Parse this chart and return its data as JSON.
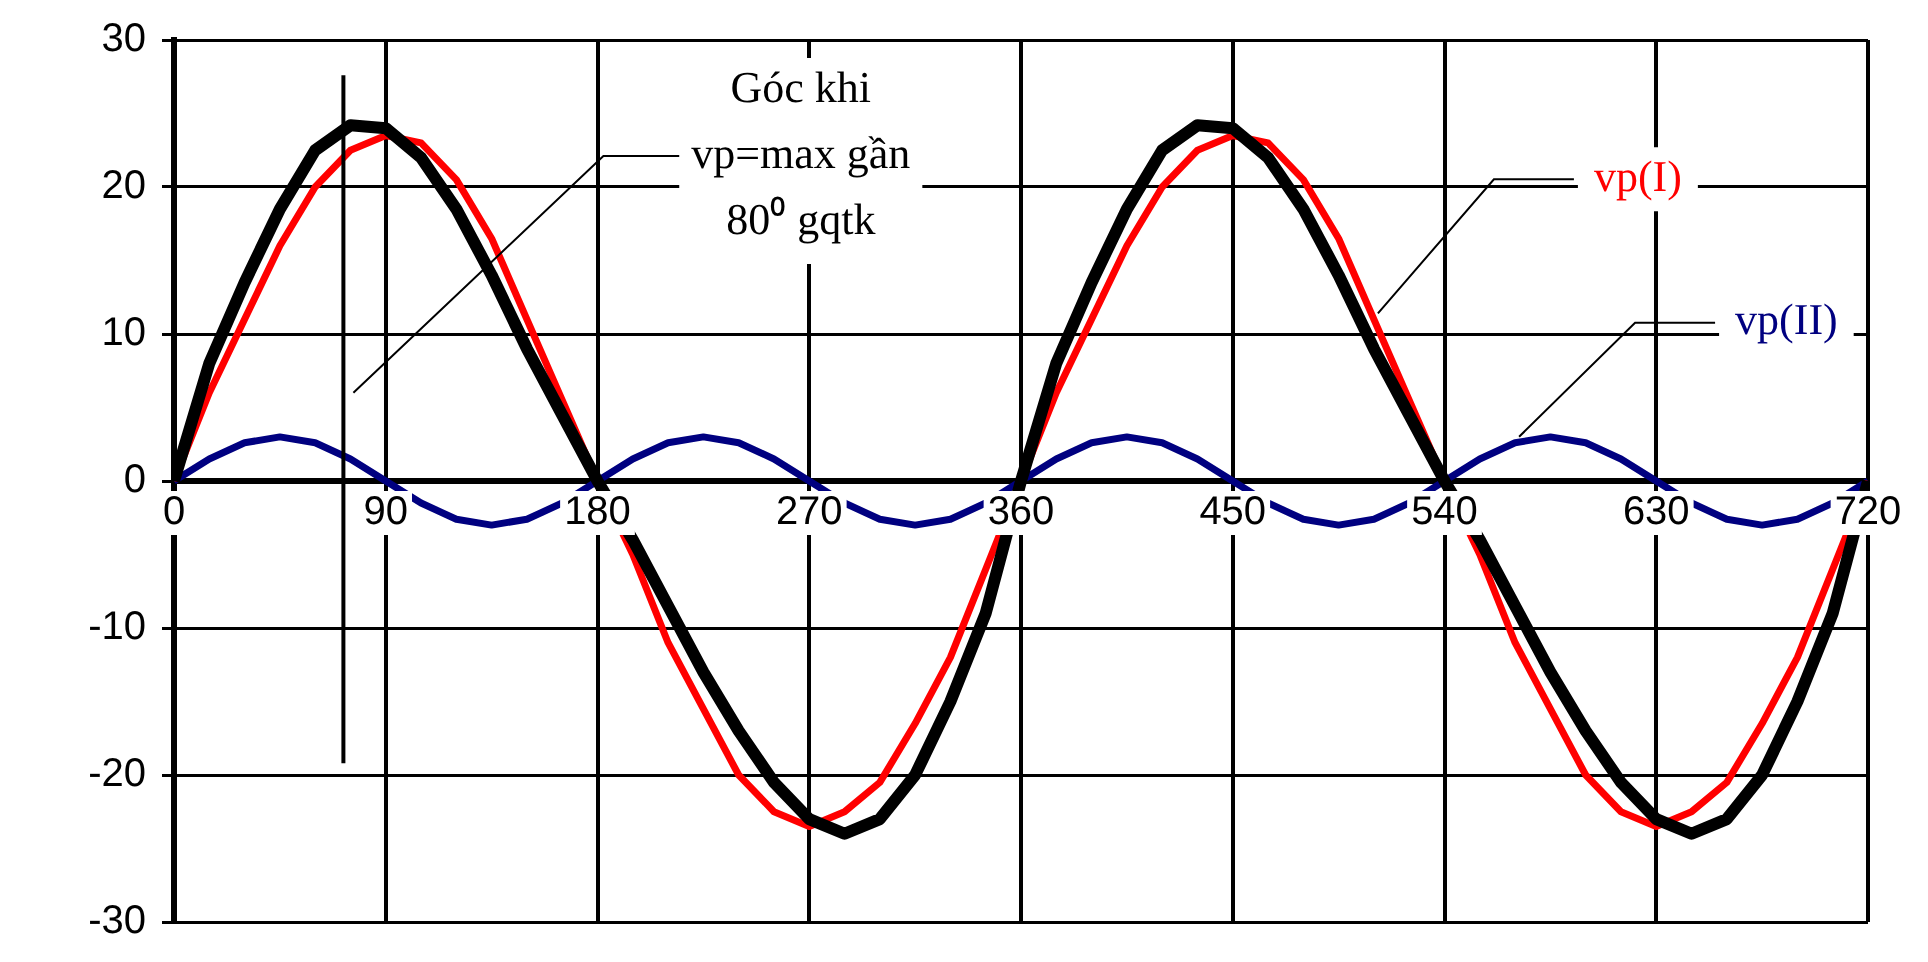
{
  "chart_data": {
    "type": "line",
    "x": [
      0,
      15,
      30,
      45,
      60,
      75,
      90,
      105,
      120,
      135,
      150,
      165,
      180,
      195,
      210,
      225,
      240,
      255,
      270,
      285,
      300,
      315,
      330,
      345,
      360,
      375,
      390,
      405,
      420,
      435,
      450,
      465,
      480,
      495,
      510,
      525,
      540,
      555,
      570,
      585,
      600,
      615,
      630,
      645,
      660,
      675,
      690,
      705,
      720
    ],
    "series": [
      {
        "color": "#000000",
        "values": [
          0,
          8,
          13.5,
          18.5,
          22.5,
          24.2,
          24,
          22,
          18.5,
          14,
          9,
          4.5,
          0,
          -4,
          -8.5,
          -13,
          -17,
          -20.5,
          -23,
          -24,
          -23,
          -20,
          -15,
          -9,
          0,
          8,
          13.5,
          18.5,
          22.5,
          24.2,
          24,
          22,
          18.5,
          14,
          9,
          4.5,
          0,
          -4,
          -8.5,
          -13,
          -17,
          -20.5,
          -23,
          -24,
          -23,
          -20,
          -15,
          -9,
          0
        ]
      },
      {
        "name": "vp(I)",
        "color": "#ff0000",
        "values": [
          0,
          6,
          11,
          16,
          20,
          22.5,
          23.5,
          23,
          20.5,
          16.5,
          11,
          5.5,
          0,
          -5,
          -11,
          -15.5,
          -20,
          -22.5,
          -23.5,
          -22.5,
          -20.5,
          -16.5,
          -12,
          -6,
          0,
          6,
          11,
          16,
          20,
          22.5,
          23.5,
          23,
          20.5,
          16.5,
          11,
          5.5,
          0,
          -5,
          -11,
          -15.5,
          -20,
          -22.5,
          -23.5,
          -22.5,
          -20.5,
          -16.5,
          -12,
          -6,
          0
        ]
      },
      {
        "name": "vp(II)",
        "color": "#000080",
        "values": [
          0,
          1.5,
          2.6,
          3,
          2.6,
          1.5,
          0,
          -1.5,
          -2.6,
          -3,
          -2.6,
          -1.5,
          0,
          1.5,
          2.6,
          3,
          2.6,
          1.5,
          0,
          -1.5,
          -2.6,
          -3,
          -2.6,
          -1.5,
          0,
          1.5,
          2.6,
          3,
          2.6,
          1.5,
          0,
          -1.5,
          -2.6,
          -3,
          -2.6,
          -1.5,
          0,
          1.5,
          2.6,
          3,
          2.6,
          1.5,
          0,
          -1.5,
          -2.6,
          -3,
          -2.6,
          -1.5,
          0
        ]
      }
    ],
    "xlim": [
      0,
      720
    ],
    "xticks": [
      0,
      90,
      180,
      270,
      360,
      450,
      540,
      630,
      720
    ],
    "ylim": [
      -30,
      30
    ],
    "yticks": [
      -30,
      -20,
      -10,
      0,
      10,
      20,
      30
    ],
    "grid": true,
    "legend": false,
    "marker": "none",
    "line_style": "solid",
    "ref_lines": [
      {
        "axis": "x",
        "value": 72,
        "label": "Góc khi vp=max gần 80⁰ gqtk",
        "color": "#000000"
      }
    ]
  }
}
